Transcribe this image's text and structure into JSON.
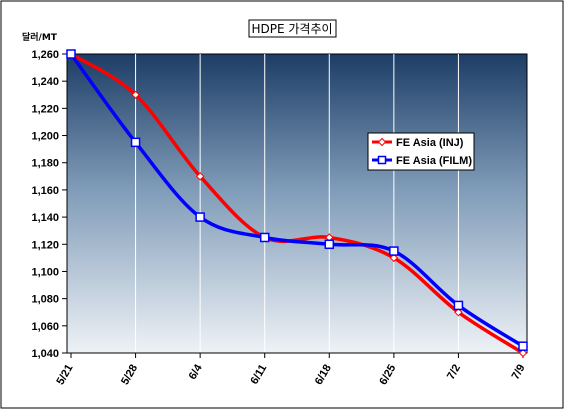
{
  "chart_data": {
    "type": "line",
    "title": "HDPE 가격추이",
    "ylabel": "달러/MT",
    "xlabel": "",
    "categories": [
      "5/21",
      "5/28",
      "6/4",
      "6/11",
      "6/18",
      "6/25",
      "7/2",
      "7/9"
    ],
    "ylim": [
      1040,
      1260
    ],
    "yticks": [
      1040,
      1060,
      1080,
      1100,
      1120,
      1140,
      1160,
      1180,
      1200,
      1220,
      1240,
      1260
    ],
    "ytick_labels": [
      "1,040",
      "1,060",
      "1,080",
      "1,100",
      "1,120",
      "1,140",
      "1,160",
      "1,180",
      "1,200",
      "1,220",
      "1,240",
      "1,260"
    ],
    "grid": "vertical",
    "legend_position": "right",
    "series": [
      {
        "name": "FE Asia (INJ)",
        "color": "#ff0000",
        "marker": "diamond",
        "values": [
          1260,
          1230,
          1170,
          1125,
          1125,
          1110,
          1070,
          1040
        ]
      },
      {
        "name": "FE Asia (FILM)",
        "color": "#0000ff",
        "marker": "square",
        "values": [
          1260,
          1195,
          1140,
          1125,
          1120,
          1115,
          1075,
          1045
        ]
      }
    ]
  }
}
